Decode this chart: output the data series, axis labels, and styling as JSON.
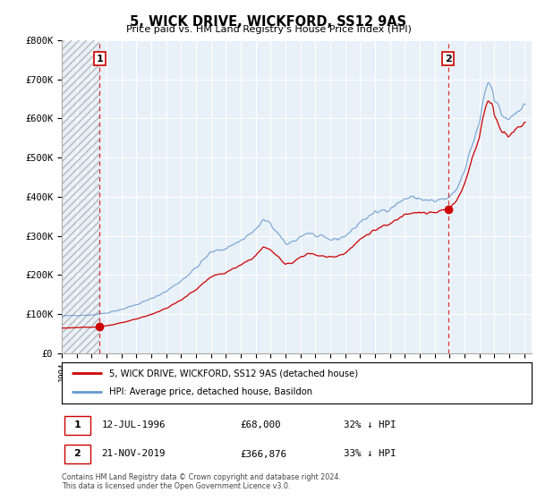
{
  "title": "5, WICK DRIVE, WICKFORD, SS12 9AS",
  "subtitle": "Price paid vs. HM Land Registry's House Price Index (HPI)",
  "legend_line1": "5, WICK DRIVE, WICKFORD, SS12 9AS (detached house)",
  "legend_line2": "HPI: Average price, detached house, Basildon",
  "footnote1": "Contains HM Land Registry data © Crown copyright and database right 2024.",
  "footnote2": "This data is licensed under the Open Government Licence v3.0.",
  "transaction1_date": "12-JUL-1996",
  "transaction1_price": "£68,000",
  "transaction1_hpi": "32% ↓ HPI",
  "transaction2_date": "21-NOV-2019",
  "transaction2_price": "£366,876",
  "transaction2_hpi": "33% ↓ HPI",
  "price_color": "#cc0000",
  "hpi_color": "#6699cc",
  "chart_bg_color": "#e8f0f8",
  "ylim": [
    0,
    800000
  ],
  "yticks": [
    0,
    100000,
    200000,
    300000,
    400000,
    500000,
    600000,
    700000,
    800000
  ],
  "ytick_labels": [
    "£0",
    "£100K",
    "£200K",
    "£300K",
    "£400K",
    "£500K",
    "£600K",
    "£700K",
    "£800K"
  ],
  "xmin": 1994,
  "xmax": 2025.5,
  "xticks": [
    1994,
    1995,
    1996,
    1997,
    1998,
    1999,
    2000,
    2001,
    2002,
    2003,
    2004,
    2005,
    2006,
    2007,
    2008,
    2009,
    2010,
    2011,
    2012,
    2013,
    2014,
    2015,
    2016,
    2017,
    2018,
    2019,
    2020,
    2021,
    2022,
    2023,
    2024,
    2025
  ],
  "vline1_x": 1996.54,
  "vline2_x": 2019.9,
  "hatch_x1": 1994,
  "hatch_x2": 1996.54,
  "transaction1_x": 1996.54,
  "transaction1_y": 68000,
  "transaction2_x": 2019.9,
  "transaction2_y": 366876
}
